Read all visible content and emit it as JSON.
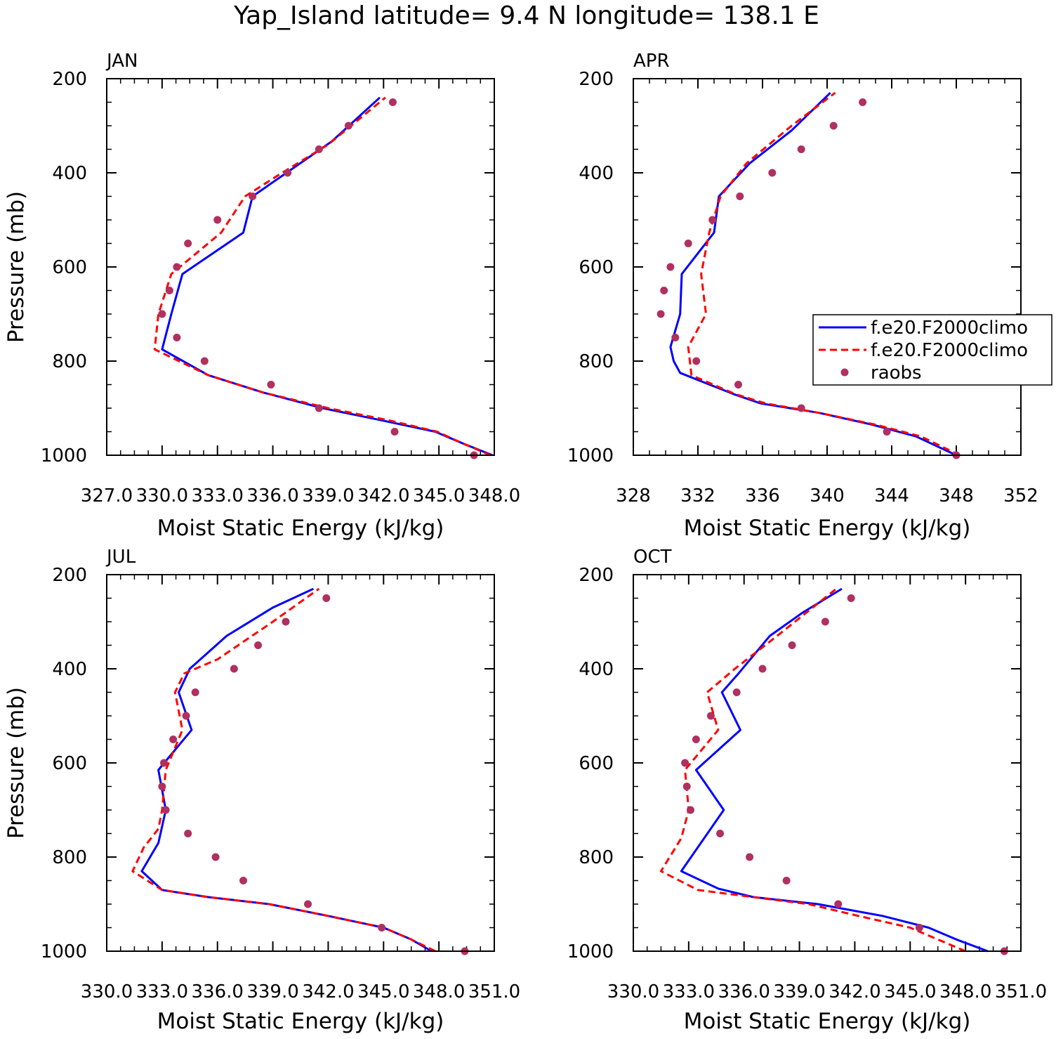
{
  "title": "Yap_Island  latitude= 9.4 N longitude= 138.1 E",
  "colors": {
    "model_1": "#0000ff",
    "model_2": "#ff0000",
    "raobs": "#b03060"
  },
  "legend": {
    "placement": "inside-right (APR panel)",
    "entries": [
      {
        "label": "f.e20.F2000climo",
        "style": "solid",
        "color": "#0000ff"
      },
      {
        "label": "f.e20.F2000climo",
        "style": "dashed",
        "color": "#ff0000"
      },
      {
        "label": "raobs",
        "style": "dot",
        "color": "#b03060"
      }
    ]
  },
  "chart_data": [
    {
      "type": "line",
      "panel": "JAN",
      "xlabel": "Moist Static Energy (kJ/kg)",
      "ylabel": "Pressure (mb)",
      "xlim": [
        327,
        348
      ],
      "ylim": [
        1000,
        200
      ],
      "xticks": [
        327,
        330,
        333,
        336,
        339,
        342,
        345,
        348
      ],
      "xticklabels": [
        "327.0",
        "330.0",
        "333.0",
        "336.0",
        "339.0",
        "342.0",
        "345.0",
        "348.0"
      ],
      "yticks": [
        200,
        400,
        600,
        800,
        1000
      ],
      "yticklabels": [
        "200",
        "400",
        "600",
        "800",
        "1000"
      ],
      "series": [
        {
          "style": "solid",
          "x": [
            347.9,
            346.3,
            344.8,
            341.8,
            338.7,
            335.5,
            332.5,
            330.0,
            330.5,
            331.1,
            334.4,
            334.9,
            339.2,
            341.8
          ],
          "y": [
            1000,
            975,
            950,
            925,
            900,
            867,
            830,
            775,
            700,
            615,
            527,
            450,
            333,
            240
          ]
        },
        {
          "style": "dashed",
          "x": [
            347.8,
            346.3,
            344.9,
            342.2,
            339.0,
            335.5,
            332.5,
            329.6,
            329.8,
            330.5,
            333.2,
            334.5,
            336.5,
            339.0,
            342.1
          ],
          "y": [
            1000,
            975,
            950,
            925,
            900,
            867,
            830,
            775,
            700,
            615,
            527,
            450,
            400,
            340,
            240
          ]
        },
        {
          "style": "dot",
          "x": [
            346.9,
            342.6,
            338.5,
            335.9,
            332.3,
            330.8,
            330.0,
            330.4,
            330.8,
            331.4,
            333.0,
            334.9,
            336.8,
            338.5,
            340.1,
            342.5
          ],
          "y": [
            1000,
            950,
            900,
            850,
            800,
            750,
            700,
            650,
            600,
            550,
            500,
            450,
            400,
            350,
            300,
            250
          ]
        }
      ]
    },
    {
      "type": "line",
      "panel": "APR",
      "xlabel": "Moist Static Energy (kJ/kg)",
      "ylabel": "",
      "xlim": [
        328,
        352
      ],
      "ylim": [
        1000,
        200
      ],
      "xticks": [
        328,
        332,
        336,
        340,
        344,
        348,
        352
      ],
      "xticklabels": [
        "328",
        "332",
        "336",
        "340",
        "344",
        "348",
        "352"
      ],
      "yticks": [
        200,
        400,
        600,
        800,
        1000
      ],
      "yticklabels": [
        "200",
        "400",
        "600",
        "800",
        "1000"
      ],
      "series": [
        {
          "style": "solid",
          "x": [
            348.0,
            345.5,
            342.8,
            339.5,
            335.9,
            334.2,
            330.9,
            330.5,
            330.3,
            330.9,
            331.0,
            333.0,
            333.3,
            335.2,
            337.8,
            340.2
          ],
          "y": [
            1000,
            960,
            935,
            910,
            890,
            870,
            825,
            800,
            770,
            700,
            615,
            527,
            450,
            380,
            310,
            230
          ]
        },
        {
          "style": "dashed",
          "x": [
            348.2,
            345.8,
            343.0,
            339.5,
            336.2,
            334.3,
            331.6,
            331.5,
            331.4,
            332.5,
            332.2,
            332.7,
            333.4,
            335.0,
            337.8,
            340.5
          ],
          "y": [
            1000,
            960,
            935,
            910,
            890,
            870,
            830,
            800,
            770,
            700,
            615,
            527,
            450,
            380,
            300,
            230
          ]
        },
        {
          "style": "dot",
          "x": [
            348.0,
            343.7,
            338.4,
            334.5,
            331.9,
            330.6,
            329.7,
            329.9,
            330.3,
            331.4,
            332.9,
            334.6,
            336.6,
            338.4,
            340.4,
            342.2
          ],
          "y": [
            1000,
            950,
            900,
            850,
            800,
            750,
            700,
            650,
            600,
            550,
            500,
            450,
            400,
            350,
            300,
            250
          ]
        }
      ]
    },
    {
      "type": "line",
      "panel": "JUL",
      "xlabel": "Moist Static Energy (kJ/kg)",
      "ylabel": "Pressure (mb)",
      "xlim": [
        330,
        351
      ],
      "ylim": [
        1000,
        200
      ],
      "xticks": [
        330,
        333,
        336,
        339,
        342,
        345,
        348,
        351
      ],
      "xticklabels": [
        "330.0",
        "333.0",
        "336.0",
        "339.0",
        "342.0",
        "345.0",
        "348.0",
        "351.0"
      ],
      "yticks": [
        200,
        400,
        600,
        800,
        1000
      ],
      "yticklabels": [
        "200",
        "400",
        "600",
        "800",
        "1000"
      ],
      "series": [
        {
          "style": "solid",
          "x": [
            347.6,
            346.5,
            345.0,
            342.0,
            338.8,
            335.5,
            333.0,
            331.9,
            332.8,
            333.2,
            332.8,
            334.6,
            333.9,
            334.5,
            336.5,
            339.0,
            341.2
          ],
          "y": [
            1000,
            975,
            950,
            925,
            900,
            885,
            870,
            830,
            770,
            700,
            615,
            530,
            450,
            400,
            330,
            270,
            230
          ]
        },
        {
          "style": "dashed",
          "x": [
            347.8,
            346.5,
            345.0,
            342.0,
            338.8,
            335.5,
            333.0,
            331.4,
            332.0,
            332.8,
            333.0,
            333.2,
            334.1,
            333.7,
            334.2,
            336.0,
            339.0,
            341.5
          ],
          "y": [
            1000,
            975,
            950,
            925,
            900,
            885,
            870,
            830,
            780,
            740,
            700,
            615,
            530,
            450,
            410,
            380,
            300,
            230
          ]
        },
        {
          "style": "dot",
          "x": [
            349.4,
            344.9,
            340.9,
            337.4,
            335.9,
            334.4,
            333.2,
            333.0,
            333.1,
            333.6,
            334.3,
            334.8,
            336.9,
            338.2,
            339.7,
            341.9
          ],
          "y": [
            1000,
            950,
            900,
            850,
            800,
            750,
            700,
            650,
            600,
            550,
            500,
            450,
            400,
            350,
            300,
            250
          ]
        }
      ]
    },
    {
      "type": "line",
      "panel": "OCT",
      "xlabel": "Moist Static Energy (kJ/kg)",
      "ylabel": "",
      "xlim": [
        330,
        351
      ],
      "ylim": [
        1000,
        200
      ],
      "xticks": [
        330,
        333,
        336,
        339,
        342,
        345,
        348,
        351
      ],
      "xticklabels": [
        "330.0",
        "333.0",
        "336.0",
        "339.0",
        "342.0",
        "345.0",
        "348.0",
        "351.0"
      ],
      "yticks": [
        200,
        400,
        600,
        800,
        1000
      ],
      "yticklabels": [
        "200",
        "400",
        "600",
        "800",
        "1000"
      ],
      "series": [
        {
          "style": "solid",
          "x": [
            349.2,
            347.5,
            346.0,
            343.5,
            340.0,
            336.5,
            334.6,
            332.6,
            334.9,
            333.4,
            335.8,
            334.8,
            335.7,
            337.4,
            339.2,
            341.3
          ],
          "y": [
            1000,
            975,
            950,
            925,
            900,
            885,
            867,
            830,
            700,
            615,
            530,
            450,
            410,
            330,
            280,
            230
          ]
        },
        {
          "style": "dashed",
          "x": [
            348.0,
            346.5,
            345.0,
            342.2,
            339.5,
            336.5,
            333.5,
            331.5,
            332.6,
            333.0,
            332.8,
            334.6,
            334.0,
            335.5,
            337.8,
            341.0
          ],
          "y": [
            1000,
            975,
            950,
            925,
            900,
            885,
            870,
            830,
            760,
            700,
            615,
            530,
            450,
            400,
            330,
            230
          ]
        },
        {
          "style": "dot",
          "x": [
            350.1,
            345.5,
            341.1,
            338.3,
            336.3,
            334.7,
            333.1,
            332.9,
            332.8,
            333.4,
            334.2,
            335.6,
            337.0,
            338.6,
            340.4,
            341.8
          ],
          "y": [
            1000,
            950,
            900,
            850,
            800,
            750,
            700,
            650,
            600,
            550,
            500,
            450,
            400,
            350,
            300,
            250
          ]
        }
      ]
    }
  ]
}
